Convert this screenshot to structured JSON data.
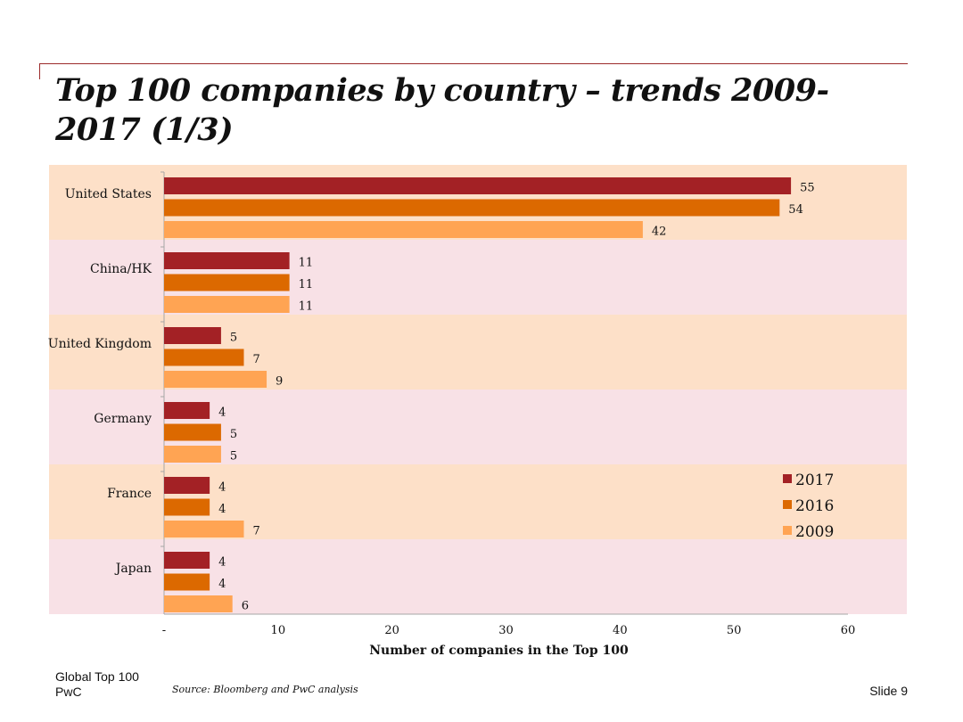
{
  "slide": {
    "title": "Top 100 companies by country – trends 2009-2017 (1/3)",
    "footer_line1": "Global Top 100",
    "footer_line2": "PwC",
    "source": "Source: Bloomberg and PwC analysis",
    "slide_number": "Slide 9"
  },
  "colors": {
    "band_a": "#fde0c8",
    "band_b": "#f8e1e6",
    "axis": "#a6a6a6",
    "series": [
      "#a32125",
      "#dc6900",
      "#ffa453"
    ]
  },
  "chart_data": {
    "type": "bar",
    "orientation": "horizontal",
    "title": "",
    "xlabel": "Number of companies in the Top 100",
    "ylabel": "",
    "xlim": [
      0,
      60
    ],
    "xticks": [
      0,
      10,
      20,
      30,
      40,
      50,
      60
    ],
    "xtick_labels": [
      "-",
      "10",
      "20",
      "30",
      "40",
      "50",
      "60"
    ],
    "categories": [
      "United States",
      "China/HK",
      "United Kingdom",
      "Germany",
      "France",
      "Japan"
    ],
    "series": [
      {
        "name": "2017",
        "values": [
          55,
          11,
          5,
          4,
          4,
          4
        ]
      },
      {
        "name": "2016",
        "values": [
          54,
          11,
          7,
          5,
          4,
          4
        ]
      },
      {
        "name": "2009",
        "values": [
          42,
          11,
          9,
          5,
          7,
          6
        ]
      }
    ],
    "legend_position": "bottom-right",
    "grid": false
  }
}
